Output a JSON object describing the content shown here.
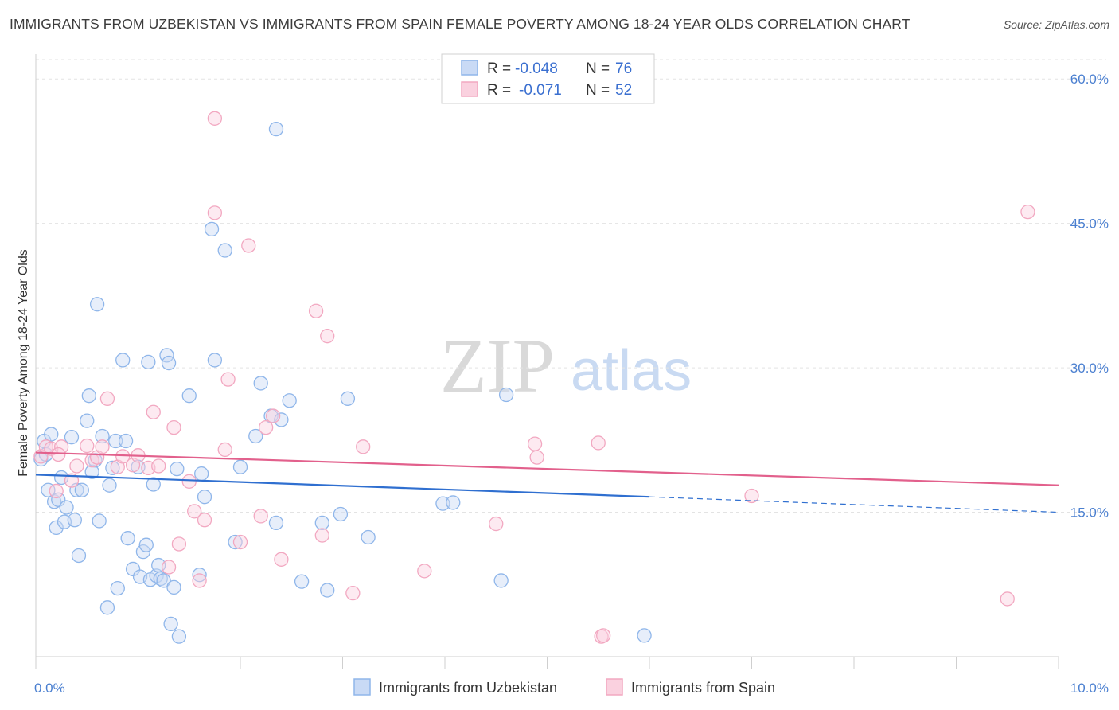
{
  "title": "IMMIGRANTS FROM UZBEKISTAN VS IMMIGRANTS FROM SPAIN FEMALE POVERTY AMONG 18-24 YEAR OLDS CORRELATION CHART",
  "source": "Source: ZipAtlas.com",
  "watermark": {
    "zip": "ZIP",
    "atlas": "atlas"
  },
  "legend": {
    "r_label": "R =",
    "n_label": "N =",
    "uzbekistan": {
      "r": "-0.048",
      "n": "76"
    },
    "spain": {
      "r": "-0.071",
      "n": "52"
    }
  },
  "chart_data": {
    "type": "scatter",
    "title": "IMMIGRANTS FROM UZBEKISTAN VS IMMIGRANTS FROM SPAIN FEMALE POVERTY AMONG 18-24 YEAR OLDS CORRELATION CHART",
    "xlabel": "",
    "ylabel": "Female Poverty Among 18-24 Year Olds",
    "xlim": [
      0,
      10
    ],
    "ylim": [
      0,
      62
    ],
    "x_tick_labels": [
      "0.0%",
      "10.0%"
    ],
    "y_ticks": [
      15,
      30,
      45,
      60
    ],
    "y_tick_labels": [
      "15.0%",
      "30.0%",
      "45.0%",
      "60.0%"
    ],
    "grid": true,
    "legend_position": "top-center",
    "series": [
      {
        "name": "Immigrants from Uzbekistan",
        "color": "#8fb6ea",
        "line_color": "#2f6fd0",
        "trend": {
          "x": [
            0,
            6.0
          ],
          "y": [
            18.9,
            16.6
          ],
          "dashed_to": [
            10,
            15.0
          ]
        },
        "points": [
          [
            0.05,
            20.5
          ],
          [
            0.08,
            22.4
          ],
          [
            0.1,
            21.0
          ],
          [
            0.12,
            17.3
          ],
          [
            0.15,
            23.1
          ],
          [
            0.18,
            16.1
          ],
          [
            0.2,
            13.4
          ],
          [
            0.22,
            16.3
          ],
          [
            0.25,
            18.6
          ],
          [
            0.28,
            14.0
          ],
          [
            0.3,
            15.5
          ],
          [
            0.35,
            22.8
          ],
          [
            0.38,
            14.2
          ],
          [
            0.4,
            17.3
          ],
          [
            0.42,
            10.5
          ],
          [
            0.45,
            17.3
          ],
          [
            0.5,
            24.5
          ],
          [
            0.52,
            27.1
          ],
          [
            0.55,
            19.2
          ],
          [
            0.58,
            20.4
          ],
          [
            0.6,
            36.6
          ],
          [
            0.62,
            14.1
          ],
          [
            0.65,
            22.9
          ],
          [
            0.7,
            5.1
          ],
          [
            0.72,
            17.8
          ],
          [
            0.75,
            19.6
          ],
          [
            0.78,
            22.4
          ],
          [
            0.8,
            7.1
          ],
          [
            0.85,
            30.8
          ],
          [
            0.88,
            22.4
          ],
          [
            0.9,
            12.3
          ],
          [
            0.95,
            9.1
          ],
          [
            1.0,
            19.7
          ],
          [
            1.02,
            8.3
          ],
          [
            1.05,
            10.9
          ],
          [
            1.08,
            11.6
          ],
          [
            1.1,
            30.6
          ],
          [
            1.12,
            8.0
          ],
          [
            1.15,
            17.9
          ],
          [
            1.18,
            8.4
          ],
          [
            1.2,
            9.5
          ],
          [
            1.22,
            8.1
          ],
          [
            1.25,
            7.9
          ],
          [
            1.28,
            31.3
          ],
          [
            1.3,
            30.5
          ],
          [
            1.32,
            3.4
          ],
          [
            1.35,
            7.2
          ],
          [
            1.38,
            19.5
          ],
          [
            1.4,
            2.1
          ],
          [
            1.5,
            27.1
          ],
          [
            1.6,
            8.5
          ],
          [
            1.62,
            19.0
          ],
          [
            1.65,
            16.6
          ],
          [
            1.72,
            44.4
          ],
          [
            1.75,
            30.8
          ],
          [
            1.85,
            42.2
          ],
          [
            1.95,
            11.9
          ],
          [
            2.0,
            19.7
          ],
          [
            2.15,
            22.9
          ],
          [
            2.2,
            28.4
          ],
          [
            2.3,
            25.0
          ],
          [
            2.35,
            13.9
          ],
          [
            2.4,
            24.6
          ],
          [
            2.48,
            26.6
          ],
          [
            2.35,
            54.8
          ],
          [
            2.6,
            7.8
          ],
          [
            2.8,
            13.9
          ],
          [
            2.85,
            6.9
          ],
          [
            2.98,
            14.8
          ],
          [
            3.05,
            26.8
          ],
          [
            3.25,
            12.4
          ],
          [
            3.98,
            15.9
          ],
          [
            4.08,
            16.0
          ],
          [
            4.55,
            7.9
          ],
          [
            4.6,
            27.2
          ],
          [
            5.95,
            2.2
          ]
        ]
      },
      {
        "name": "Immigrants from Spain",
        "color": "#f2a8c1",
        "line_color": "#e2608c",
        "trend": {
          "x": [
            0,
            10
          ],
          "y": [
            21.2,
            17.8
          ]
        },
        "points": [
          [
            0.05,
            20.8
          ],
          [
            0.1,
            21.8
          ],
          [
            0.15,
            21.6
          ],
          [
            0.2,
            17.2
          ],
          [
            0.25,
            21.8
          ],
          [
            0.35,
            18.3
          ],
          [
            0.4,
            19.8
          ],
          [
            0.5,
            21.9
          ],
          [
            0.55,
            20.4
          ],
          [
            0.6,
            20.7
          ],
          [
            0.65,
            21.8
          ],
          [
            0.7,
            26.8
          ],
          [
            0.8,
            19.7
          ],
          [
            0.85,
            20.8
          ],
          [
            0.95,
            19.9
          ],
          [
            1.0,
            20.9
          ],
          [
            1.1,
            19.6
          ],
          [
            1.15,
            25.4
          ],
          [
            1.2,
            19.8
          ],
          [
            1.3,
            9.3
          ],
          [
            1.35,
            23.8
          ],
          [
            1.4,
            11.7
          ],
          [
            1.5,
            18.2
          ],
          [
            1.55,
            15.1
          ],
          [
            1.6,
            7.9
          ],
          [
            1.65,
            14.2
          ],
          [
            1.75,
            46.1
          ],
          [
            1.75,
            55.9
          ],
          [
            1.85,
            21.5
          ],
          [
            1.88,
            28.8
          ],
          [
            2.0,
            11.9
          ],
          [
            2.08,
            42.7
          ],
          [
            2.2,
            14.6
          ],
          [
            2.25,
            23.8
          ],
          [
            2.32,
            25.0
          ],
          [
            2.4,
            10.1
          ],
          [
            2.74,
            35.9
          ],
          [
            2.8,
            12.6
          ],
          [
            2.85,
            33.3
          ],
          [
            3.1,
            6.6
          ],
          [
            3.2,
            21.8
          ],
          [
            3.8,
            8.9
          ],
          [
            4.5,
            13.8
          ],
          [
            4.88,
            22.1
          ],
          [
            4.9,
            20.7
          ],
          [
            5.5,
            22.2
          ],
          [
            5.53,
            2.1
          ],
          [
            5.55,
            2.2
          ],
          [
            7.0,
            16.7
          ],
          [
            9.5,
            6.0
          ],
          [
            9.7,
            46.2
          ],
          [
            0.22,
            21.0
          ]
        ]
      }
    ]
  }
}
